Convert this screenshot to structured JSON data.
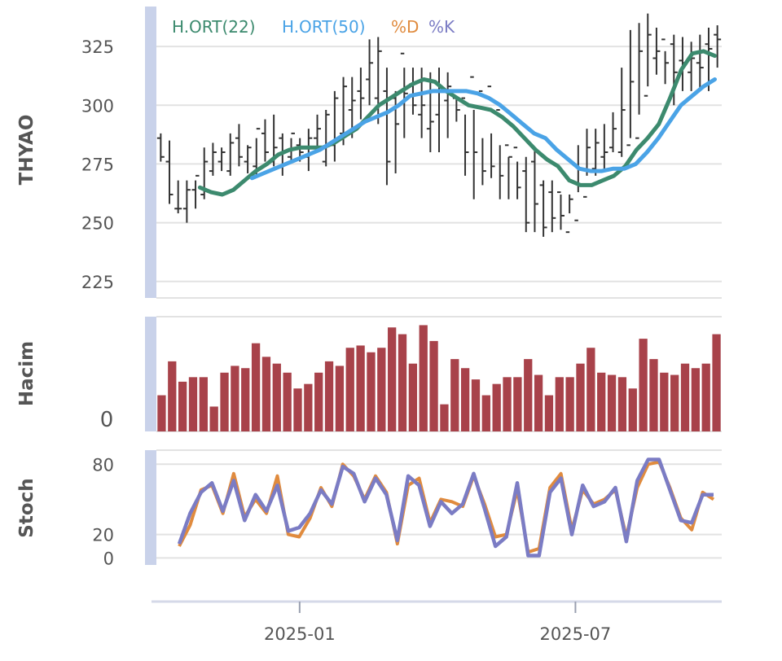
{
  "legend": [
    {
      "label": "H.ORT(22)",
      "color": "#3c8a6e"
    },
    {
      "label": "H.ORT(50)",
      "color": "#4aa3e6"
    },
    {
      "label": "%D",
      "color": "#e08b3e"
    },
    {
      "label": "%K",
      "color": "#7b7cc4"
    }
  ],
  "colors": {
    "ohlc": "#333333",
    "volume_bar": "#a8424a",
    "grid": "#e2e2e2",
    "side_band": "#c9d2ea",
    "ylabel": "#555555",
    "tick": "#555555"
  },
  "chart_data": [
    {
      "type": "ohlc",
      "ylabel": "THYAO",
      "ylim": [
        218,
        342
      ],
      "yticks": [
        225,
        250,
        275,
        300,
        325
      ],
      "x_start": "2024-09-29",
      "x_end": "2025-10-05",
      "ohlc": {
        "open": [
          286,
          276,
          256,
          256,
          264,
          262,
          272,
          276,
          272,
          286,
          276,
          274,
          288,
          276,
          286,
          278,
          283,
          278,
          286,
          276,
          283,
          288,
          298,
          306,
          311,
          303,
          306,
          303,
          322,
          309,
          296,
          290,
          296,
          302,
          303,
          303,
          312,
          306,
          308,
          298,
          283,
          282,
          272,
          276,
          266,
          263,
          263,
          246,
          251,
          261,
          273,
          278,
          282,
          280,
          283,
          286,
          304,
          320,
          328,
          326,
          319,
          314,
          318,
          326,
          330
        ],
        "high": [
          288,
          285,
          268,
          268,
          268,
          282,
          284,
          282,
          288,
          292,
          283,
          286,
          294,
          296,
          288,
          286,
          286,
          290,
          296,
          298,
          306,
          312,
          312,
          316,
          328,
          329,
          316,
          306,
          316,
          316,
          316,
          314,
          316,
          314,
          303,
          296,
          298,
          286,
          288,
          283,
          278,
          276,
          278,
          281,
          268,
          268,
          262,
          262,
          283,
          290,
          290,
          292,
          297,
          316,
          332,
          335,
          339,
          333,
          323,
          330,
          329,
          327,
          330,
          333,
          334
        ],
        "low": [
          276,
          258,
          254,
          250,
          256,
          260,
          270,
          272,
          270,
          274,
          271,
          270,
          276,
          274,
          270,
          276,
          276,
          272,
          280,
          274,
          276,
          283,
          286,
          294,
          300,
          292,
          266,
          271,
          286,
          296,
          286,
          280,
          280,
          286,
          293,
          270,
          260,
          266,
          269,
          260,
          260,
          260,
          246,
          246,
          244,
          246,
          247,
          254,
          263,
          270,
          270,
          273,
          280,
          278,
          286,
          296,
          308,
          313,
          309,
          300,
          306,
          306,
          306,
          306,
          316
        ],
        "close": [
          278,
          262,
          256,
          264,
          270,
          276,
          280,
          280,
          284,
          278,
          282,
          290,
          280,
          282,
          280,
          288,
          280,
          286,
          290,
          296,
          303,
          308,
          302,
          303,
          318,
          323,
          276,
          292,
          305,
          300,
          300,
          293,
          306,
          308,
          298,
          280,
          280,
          272,
          274,
          270,
          278,
          265,
          250,
          258,
          248,
          252,
          253,
          260,
          273,
          282,
          284,
          280,
          290,
          298,
          310,
          323,
          330,
          323,
          318,
          314,
          318,
          320,
          316,
          324,
          328
        ]
      },
      "sma22": [
        265,
        263,
        262,
        264,
        268,
        272,
        275,
        279,
        281,
        282,
        282,
        282,
        284,
        287,
        290,
        295,
        300,
        303,
        306,
        309,
        311,
        310,
        306,
        303,
        300,
        299,
        298,
        295,
        291,
        286,
        281,
        277,
        274,
        268,
        266,
        266,
        268,
        270,
        274,
        281,
        286,
        292,
        303,
        315,
        322,
        323,
        321
      ],
      "sma50": [
        269,
        271,
        273,
        275,
        277,
        279,
        281,
        284,
        287,
        290,
        293,
        295,
        297,
        300,
        304,
        305,
        306,
        306,
        306,
        306,
        305,
        303,
        300,
        296,
        292,
        288,
        286,
        281,
        277,
        273,
        272,
        272,
        273,
        273,
        275,
        280,
        286,
        293,
        300,
        304,
        308,
        311
      ]
    },
    {
      "type": "bar",
      "ylabel": "Hacim",
      "yticks_labels": [
        "0"
      ],
      "values": [
        32,
        62,
        44,
        48,
        48,
        22,
        52,
        58,
        56,
        78,
        66,
        60,
        52,
        38,
        42,
        52,
        62,
        58,
        74,
        76,
        70,
        74,
        92,
        86,
        60,
        94,
        80,
        24,
        64,
        56,
        46,
        32,
        42,
        48,
        48,
        64,
        50,
        32,
        48,
        48,
        60,
        74,
        52,
        50,
        48,
        38,
        82,
        64,
        52,
        50,
        60,
        56,
        60,
        86
      ]
    },
    {
      "type": "line",
      "ylabel": "Stoch",
      "ylim": [
        -6,
        92
      ],
      "yticks": [
        0,
        20,
        80
      ],
      "series": [
        {
          "name": "%D",
          "values": [
            10,
            28,
            58,
            62,
            38,
            72,
            35,
            50,
            38,
            70,
            20,
            18,
            34,
            60,
            44,
            80,
            70,
            50,
            70,
            56,
            12,
            62,
            68,
            30,
            50,
            48,
            44,
            70,
            46,
            18,
            20,
            58,
            5,
            8,
            60,
            72,
            24,
            58,
            46,
            50,
            58,
            18,
            60,
            80,
            82,
            60,
            34,
            24,
            56,
            50
          ]
        },
        {
          "name": "%K",
          "values": [
            12,
            38,
            56,
            64,
            40,
            66,
            32,
            54,
            40,
            62,
            23,
            26,
            38,
            58,
            46,
            78,
            72,
            48,
            68,
            54,
            15,
            70,
            62,
            27,
            48,
            38,
            46,
            72,
            42,
            10,
            18,
            64,
            2,
            2,
            56,
            68,
            20,
            62,
            44,
            48,
            60,
            14,
            66,
            84,
            84,
            58,
            32,
            30,
            54,
            54
          ]
        }
      ]
    }
  ],
  "x_axis": {
    "ticks": [
      {
        "label": "2025-01",
        "date": "2025-01-01"
      },
      {
        "label": "2025-07",
        "date": "2025-07-01"
      }
    ]
  }
}
